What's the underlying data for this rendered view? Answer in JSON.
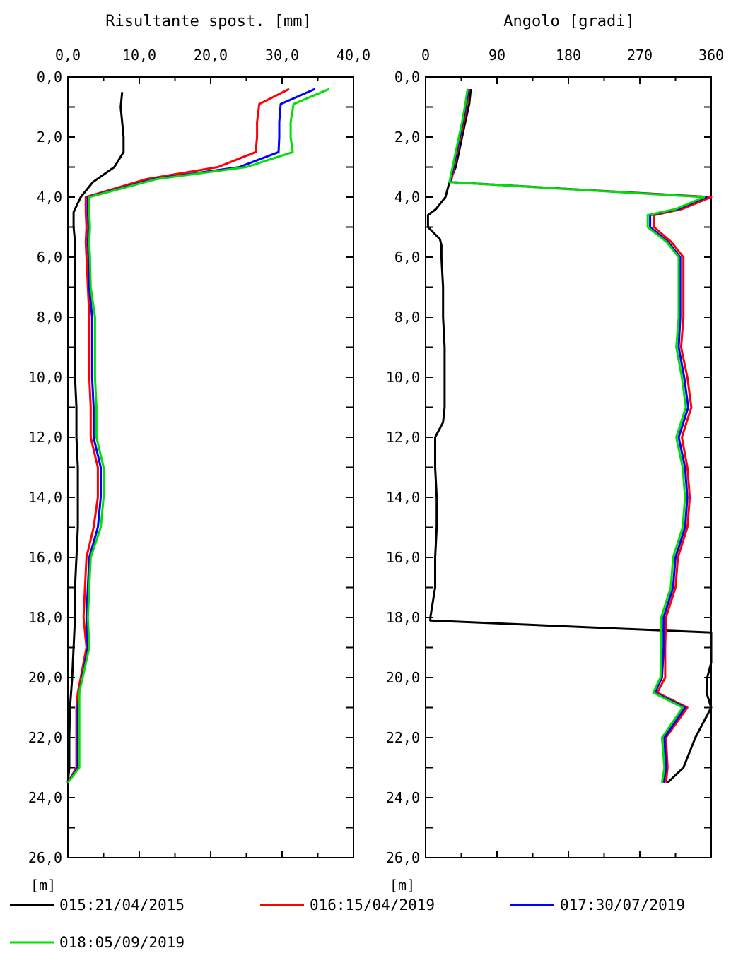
{
  "chart_data": [
    {
      "type": "line",
      "title": "Risultante spost. [mm]",
      "ylabel": "[m]",
      "xlim": [
        0,
        40
      ],
      "ylim": [
        0,
        26
      ],
      "y_reversed": true,
      "x_ticks": [
        "0,0",
        "10,0",
        "20,0",
        "30,0",
        "40,0"
      ],
      "y_ticks": [
        "0,0",
        "2,0",
        "4,0",
        "6,0",
        "8,0",
        "10,0",
        "12,0",
        "14,0",
        "16,0",
        "18,0",
        "20,0",
        "22,0",
        "24,0",
        "26,0"
      ],
      "series": [
        {
          "name": "015:21/04/2015",
          "color": "#000000",
          "points": [
            [
              7.6,
              0.5
            ],
            [
              7.4,
              1.0
            ],
            [
              7.6,
              1.5
            ],
            [
              7.8,
              2.0
            ],
            [
              7.8,
              2.5
            ],
            [
              6.5,
              3.0
            ],
            [
              3.5,
              3.5
            ],
            [
              1.8,
              4.0
            ],
            [
              0.8,
              4.5
            ],
            [
              0.8,
              5.0
            ],
            [
              1.0,
              5.5
            ],
            [
              1.0,
              6.0
            ],
            [
              1.0,
              7.0
            ],
            [
              1.0,
              8.0
            ],
            [
              1.0,
              9.0
            ],
            [
              1.0,
              10.0
            ],
            [
              1.2,
              11.0
            ],
            [
              1.2,
              12.0
            ],
            [
              1.4,
              13.0
            ],
            [
              1.4,
              14.0
            ],
            [
              1.4,
              15.0
            ],
            [
              1.2,
              16.0
            ],
            [
              1.0,
              17.0
            ],
            [
              1.0,
              18.0
            ],
            [
              0.8,
              19.0
            ],
            [
              0.6,
              20.0
            ],
            [
              0.3,
              21.0
            ],
            [
              0.2,
              22.0
            ],
            [
              0.2,
              23.0
            ],
            [
              0.0,
              23.5
            ]
          ]
        },
        {
          "name": "016:15/04/2019",
          "color": "#ff0000",
          "points": [
            [
              31.0,
              0.4
            ],
            [
              26.8,
              0.9
            ],
            [
              26.5,
              1.5
            ],
            [
              26.5,
              2.0
            ],
            [
              26.3,
              2.5
            ],
            [
              21.0,
              3.0
            ],
            [
              11.0,
              3.4
            ],
            [
              2.5,
              4.0
            ],
            [
              2.5,
              4.5
            ],
            [
              2.6,
              5.0
            ],
            [
              2.5,
              5.5
            ],
            [
              2.6,
              6.0
            ],
            [
              2.8,
              7.0
            ],
            [
              3.0,
              8.0
            ],
            [
              3.0,
              9.0
            ],
            [
              3.0,
              10.0
            ],
            [
              3.2,
              11.0
            ],
            [
              3.2,
              12.0
            ],
            [
              4.2,
              13.0
            ],
            [
              4.2,
              14.0
            ],
            [
              3.6,
              15.0
            ],
            [
              2.6,
              16.0
            ],
            [
              2.4,
              17.0
            ],
            [
              2.2,
              18.0
            ],
            [
              2.6,
              19.0
            ],
            [
              1.4,
              20.5
            ],
            [
              1.2,
              21.0
            ],
            [
              1.2,
              22.0
            ],
            [
              1.2,
              23.0
            ],
            [
              0.0,
              23.5
            ]
          ]
        },
        {
          "name": "017:30/07/2019",
          "color": "#0000ff",
          "points": [
            [
              34.6,
              0.4
            ],
            [
              29.8,
              0.9
            ],
            [
              29.6,
              1.5
            ],
            [
              29.6,
              2.0
            ],
            [
              29.5,
              2.5
            ],
            [
              24.0,
              3.0
            ],
            [
              12.0,
              3.4
            ],
            [
              2.8,
              4.0
            ],
            [
              2.8,
              4.5
            ],
            [
              2.9,
              5.0
            ],
            [
              2.8,
              5.5
            ],
            [
              2.9,
              6.0
            ],
            [
              3.0,
              7.0
            ],
            [
              3.4,
              8.0
            ],
            [
              3.4,
              9.0
            ],
            [
              3.4,
              10.0
            ],
            [
              3.6,
              11.0
            ],
            [
              3.6,
              12.0
            ],
            [
              4.6,
              13.0
            ],
            [
              4.6,
              14.0
            ],
            [
              4.2,
              15.0
            ],
            [
              3.0,
              16.0
            ],
            [
              2.8,
              17.0
            ],
            [
              2.6,
              18.0
            ],
            [
              2.8,
              19.0
            ],
            [
              1.6,
              20.5
            ],
            [
              1.4,
              21.0
            ],
            [
              1.4,
              22.0
            ],
            [
              1.4,
              23.0
            ],
            [
              0.0,
              23.5
            ]
          ]
        },
        {
          "name": "018:05/09/2019",
          "color": "#00e000",
          "points": [
            [
              36.6,
              0.4
            ],
            [
              31.6,
              0.9
            ],
            [
              31.2,
              1.5
            ],
            [
              31.2,
              2.0
            ],
            [
              31.5,
              2.5
            ],
            [
              25.0,
              3.0
            ],
            [
              12.4,
              3.4
            ],
            [
              3.0,
              4.0
            ],
            [
              3.0,
              4.5
            ],
            [
              3.1,
              5.0
            ],
            [
              3.0,
              5.5
            ],
            [
              3.1,
              6.0
            ],
            [
              3.2,
              7.0
            ],
            [
              3.8,
              8.0
            ],
            [
              3.8,
              9.0
            ],
            [
              3.8,
              10.0
            ],
            [
              4.0,
              11.0
            ],
            [
              4.0,
              12.0
            ],
            [
              5.0,
              13.0
            ],
            [
              5.0,
              14.0
            ],
            [
              4.6,
              15.0
            ],
            [
              3.2,
              16.0
            ],
            [
              3.0,
              17.0
            ],
            [
              2.8,
              18.0
            ],
            [
              3.0,
              19.0
            ],
            [
              1.6,
              20.5
            ],
            [
              1.6,
              21.0
            ],
            [
              1.6,
              22.0
            ],
            [
              1.6,
              23.0
            ],
            [
              0.0,
              23.5
            ]
          ]
        }
      ]
    },
    {
      "type": "line",
      "title": "Angolo [gradi]",
      "ylabel": "[m]",
      "xlim": [
        0,
        360
      ],
      "ylim": [
        0,
        26
      ],
      "y_reversed": true,
      "x_ticks": [
        "0",
        "90",
        "180",
        "270",
        "360"
      ],
      "y_ticks": [
        "0,0",
        "2,0",
        "4,0",
        "6,0",
        "8,0",
        "10,0",
        "12,0",
        "14,0",
        "16,0",
        "18,0",
        "20,0",
        "22,0",
        "24,0",
        "26,0"
      ],
      "series": [
        {
          "name": "015:21/04/2015",
          "color": "#000000",
          "points": [
            [
              57,
              0.4
            ],
            [
              55,
              0.9
            ],
            [
              50,
              1.5
            ],
            [
              46,
              2.0
            ],
            [
              42,
              2.5
            ],
            [
              38,
              3.0
            ],
            [
              30,
              3.5
            ],
            [
              25,
              4.0
            ],
            [
              13,
              4.4
            ],
            [
              3,
              4.6
            ],
            [
              3,
              5.0
            ],
            [
              18,
              5.4
            ],
            [
              20,
              5.6
            ],
            [
              20,
              6.0
            ],
            [
              22,
              7.0
            ],
            [
              22,
              8.0
            ],
            [
              24,
              9.0
            ],
            [
              24,
              10.0
            ],
            [
              24,
              11.0
            ],
            [
              22,
              11.5
            ],
            [
              12,
              12.0
            ],
            [
              12,
              13.0
            ],
            [
              14,
              14.0
            ],
            [
              14,
              15.0
            ],
            [
              12,
              16.0
            ],
            [
              12,
              17.0
            ],
            [
              6,
              18.0
            ],
            [
              6,
              18.1
            ],
            [
              360,
              18.5
            ],
            [
              360,
              19.0
            ],
            [
              360,
              19.5
            ],
            [
              355,
              20.0
            ],
            [
              354,
              20.5
            ],
            [
              360,
              21.0
            ],
            [
              340,
              22.0
            ],
            [
              325,
              23.0
            ],
            [
              305,
              23.5
            ]
          ]
        },
        {
          "name": "016:15/04/2019",
          "color": "#ff0000",
          "points": [
            [
              55,
              0.4
            ],
            [
              52,
              0.9
            ],
            [
              48,
              1.5
            ],
            [
              44,
              2.0
            ],
            [
              40,
              2.5
            ],
            [
              36,
              3.0
            ],
            [
              32,
              3.5
            ],
            [
              360,
              4.0
            ],
            [
              323,
              4.4
            ],
            [
              288,
              4.6
            ],
            [
              288,
              5.0
            ],
            [
              310,
              5.5
            ],
            [
              325,
              6.0
            ],
            [
              325,
              7.0
            ],
            [
              325,
              8.0
            ],
            [
              322,
              9.0
            ],
            [
              330,
              10.0
            ],
            [
              335,
              11.0
            ],
            [
              323,
              12.0
            ],
            [
              330,
              13.0
            ],
            [
              333,
              14.0
            ],
            [
              330,
              15.0
            ],
            [
              318,
              16.0
            ],
            [
              315,
              17.0
            ],
            [
              303,
              18.0
            ],
            [
              302,
              19.0
            ],
            [
              302,
              20.0
            ],
            [
              292,
              20.5
            ],
            [
              330,
              21.0
            ],
            [
              303,
              22.0
            ],
            [
              305,
              23.0
            ],
            [
              303,
              23.5
            ]
          ]
        },
        {
          "name": "017:30/07/2019",
          "color": "#0000ff",
          "points": [
            [
              54,
              0.4
            ],
            [
              51,
              0.9
            ],
            [
              47,
              1.5
            ],
            [
              43,
              2.0
            ],
            [
              39,
              2.5
            ],
            [
              35,
              3.0
            ],
            [
              31,
              3.5
            ],
            [
              354,
              4.0
            ],
            [
              318,
              4.4
            ],
            [
              283,
              4.6
            ],
            [
              283,
              5.0
            ],
            [
              306,
              5.5
            ],
            [
              321,
              6.0
            ],
            [
              321,
              7.0
            ],
            [
              321,
              8.0
            ],
            [
              319,
              9.0
            ],
            [
              326,
              10.0
            ],
            [
              331,
              11.0
            ],
            [
              319,
              12.0
            ],
            [
              327,
              13.0
            ],
            [
              330,
              14.0
            ],
            [
              327,
              15.0
            ],
            [
              315,
              16.0
            ],
            [
              312,
              17.0
            ],
            [
              300,
              18.0
            ],
            [
              300,
              19.0
            ],
            [
              298,
              20.0
            ],
            [
              289,
              20.5
            ],
            [
              327,
              21.0
            ],
            [
              301,
              22.0
            ],
            [
              303,
              23.0
            ],
            [
              300,
              23.5
            ]
          ]
        },
        {
          "name": "018:05/09/2019",
          "color": "#00e000",
          "points": [
            [
              53,
              0.4
            ],
            [
              50,
              0.9
            ],
            [
              46,
              1.5
            ],
            [
              42,
              2.0
            ],
            [
              38,
              2.5
            ],
            [
              34,
              3.0
            ],
            [
              30,
              3.5
            ],
            [
              351,
              4.0
            ],
            [
              315,
              4.4
            ],
            [
              280,
              4.6
            ],
            [
              280,
              5.0
            ],
            [
              304,
              5.5
            ],
            [
              319,
              6.0
            ],
            [
              319,
              7.0
            ],
            [
              319,
              8.0
            ],
            [
              316,
              9.0
            ],
            [
              323,
              10.0
            ],
            [
              328,
              11.0
            ],
            [
              316,
              12.0
            ],
            [
              324,
              13.0
            ],
            [
              327,
              14.0
            ],
            [
              324,
              15.0
            ],
            [
              312,
              16.0
            ],
            [
              309,
              17.0
            ],
            [
              297,
              18.0
            ],
            [
              297,
              19.0
            ],
            [
              296,
              20.0
            ],
            [
              287,
              20.5
            ],
            [
              324,
              21.0
            ],
            [
              298,
              22.0
            ],
            [
              301,
              23.0
            ],
            [
              298,
              23.5
            ]
          ]
        }
      ]
    }
  ],
  "legend": [
    {
      "label": "015:21/04/2015",
      "color": "#000000"
    },
    {
      "label": "016:15/04/2019",
      "color": "#ff0000"
    },
    {
      "label": "017:30/07/2019",
      "color": "#0000ff"
    },
    {
      "label": "018:05/09/2019",
      "color": "#00e000"
    }
  ]
}
